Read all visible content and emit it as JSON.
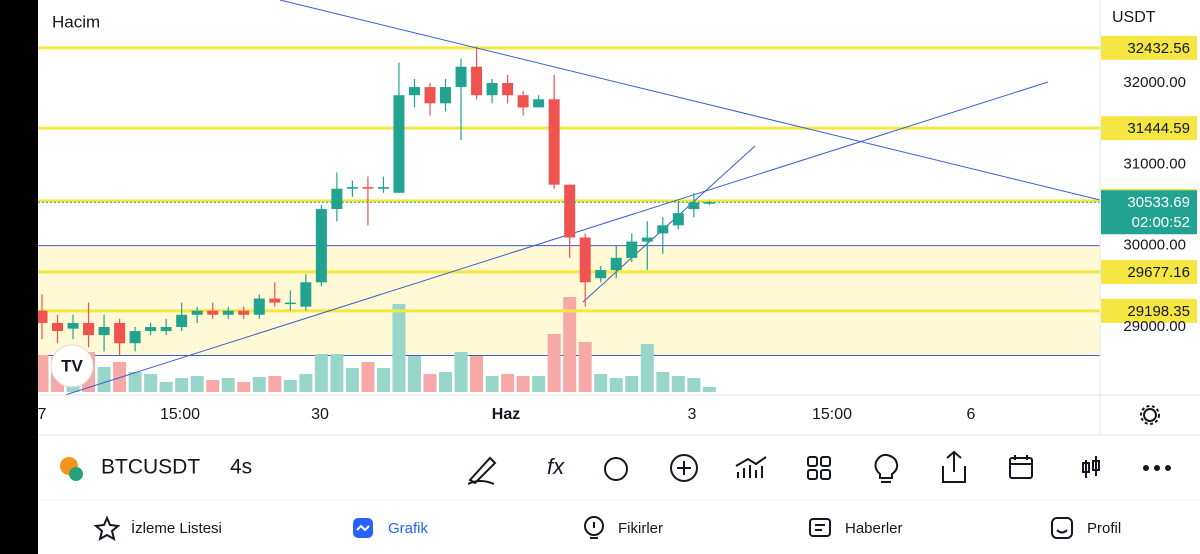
{
  "chart": {
    "volume_label": "Hacim",
    "currency": "USDT",
    "yticks": [
      {
        "value": 32000,
        "label": "32000.00"
      },
      {
        "value": 31000,
        "label": "31000.00"
      },
      {
        "value": 30000,
        "label": "30000.00"
      },
      {
        "value": 29000,
        "label": "29000.00"
      }
    ],
    "xlabels": [
      "7",
      "15:00",
      "30",
      "Haz",
      "3",
      "15:00",
      "6"
    ],
    "levels": [
      32432.56,
      31444.59,
      30550.23,
      29677.16,
      29198.35
    ],
    "zone": [
      30000,
      28650
    ],
    "last_price": 30533.69,
    "countdown": "02:00:52",
    "candles": [
      {
        "o": 29200,
        "h": 29400,
        "l": 28850,
        "c": 29050,
        "v": 37
      },
      {
        "o": 29050,
        "h": 29150,
        "l": 28800,
        "c": 28950,
        "v": 35
      },
      {
        "o": 28980,
        "h": 29150,
        "l": 28850,
        "c": 29050,
        "v": 30
      },
      {
        "o": 29050,
        "h": 29300,
        "l": 28750,
        "c": 28900,
        "v": 40
      },
      {
        "o": 28900,
        "h": 29150,
        "l": 28700,
        "c": 29000,
        "v": 25
      },
      {
        "o": 29050,
        "h": 29100,
        "l": 28650,
        "c": 28800,
        "v": 30
      },
      {
        "o": 28800,
        "h": 29000,
        "l": 28700,
        "c": 28950,
        "v": 20
      },
      {
        "o": 28950,
        "h": 29050,
        "l": 28900,
        "c": 29000,
        "v": 18
      },
      {
        "o": 28950,
        "h": 29100,
        "l": 28900,
        "c": 29000,
        "v": 10
      },
      {
        "o": 29000,
        "h": 29300,
        "l": 28950,
        "c": 29150,
        "v": 14
      },
      {
        "o": 29150,
        "h": 29250,
        "l": 29050,
        "c": 29200,
        "v": 16
      },
      {
        "o": 29200,
        "h": 29300,
        "l": 29100,
        "c": 29150,
        "v": 12
      },
      {
        "o": 29150,
        "h": 29250,
        "l": 29100,
        "c": 29200,
        "v": 14
      },
      {
        "o": 29200,
        "h": 29250,
        "l": 29100,
        "c": 29150,
        "v": 10
      },
      {
        "o": 29150,
        "h": 29400,
        "l": 29100,
        "c": 29350,
        "v": 15
      },
      {
        "o": 29350,
        "h": 29550,
        "l": 29250,
        "c": 29300,
        "v": 16
      },
      {
        "o": 29300,
        "h": 29450,
        "l": 29200,
        "c": 29300,
        "v": 12
      },
      {
        "o": 29250,
        "h": 29650,
        "l": 29200,
        "c": 29550,
        "v": 18
      },
      {
        "o": 29550,
        "h": 30500,
        "l": 29500,
        "c": 30450,
        "v": 38
      },
      {
        "o": 30450,
        "h": 30900,
        "l": 30300,
        "c": 30700,
        "v": 38
      },
      {
        "o": 30700,
        "h": 30800,
        "l": 30600,
        "c": 30720,
        "v": 24
      },
      {
        "o": 30720,
        "h": 30850,
        "l": 30250,
        "c": 30700,
        "v": 30
      },
      {
        "o": 30700,
        "h": 30850,
        "l": 30650,
        "c": 30720,
        "v": 24
      },
      {
        "o": 30650,
        "h": 32250,
        "l": 30650,
        "c": 31850,
        "v": 88
      },
      {
        "o": 31850,
        "h": 32050,
        "l": 31700,
        "c": 31950,
        "v": 36
      },
      {
        "o": 31950,
        "h": 32000,
        "l": 31600,
        "c": 31750,
        "v": 18
      },
      {
        "o": 31750,
        "h": 32050,
        "l": 31650,
        "c": 31950,
        "v": 20
      },
      {
        "o": 31950,
        "h": 32300,
        "l": 31300,
        "c": 32200,
        "v": 40
      },
      {
        "o": 32200,
        "h": 32450,
        "l": 31800,
        "c": 31850,
        "v": 36
      },
      {
        "o": 31850,
        "h": 32050,
        "l": 31750,
        "c": 32000,
        "v": 16
      },
      {
        "o": 32000,
        "h": 32100,
        "l": 31750,
        "c": 31850,
        "v": 18
      },
      {
        "o": 31850,
        "h": 31900,
        "l": 31600,
        "c": 31700,
        "v": 16
      },
      {
        "o": 31700,
        "h": 31850,
        "l": 31700,
        "c": 31800,
        "v": 16
      },
      {
        "o": 31800,
        "h": 32100,
        "l": 30700,
        "c": 30750,
        "v": 58
      },
      {
        "o": 30750,
        "h": 30750,
        "l": 29850,
        "c": 30100,
        "v": 95
      },
      {
        "o": 30100,
        "h": 30150,
        "l": 29250,
        "c": 29550,
        "v": 50
      },
      {
        "o": 29600,
        "h": 29750,
        "l": 29550,
        "c": 29700,
        "v": 18
      },
      {
        "o": 29700,
        "h": 30000,
        "l": 29600,
        "c": 29850,
        "v": 14
      },
      {
        "o": 29850,
        "h": 30150,
        "l": 29800,
        "c": 30050,
        "v": 16
      },
      {
        "o": 30050,
        "h": 30300,
        "l": 29700,
        "c": 30100,
        "v": 48
      },
      {
        "o": 30150,
        "h": 30350,
        "l": 29900,
        "c": 30250,
        "v": 20
      },
      {
        "o": 30250,
        "h": 30550,
        "l": 30200,
        "c": 30400,
        "v": 16
      },
      {
        "o": 30450,
        "h": 30650,
        "l": 30350,
        "c": 30530,
        "v": 14
      },
      {
        "o": 30530,
        "h": 30550,
        "l": 30500,
        "c": 30534,
        "v": 5
      }
    ]
  },
  "toolbar": {
    "symbol": "BTCUSDT",
    "interval": "4s"
  },
  "nav": [
    "İzleme Listesi",
    "Grafik",
    "Fikirler",
    "Haberler",
    "Profil"
  ]
}
